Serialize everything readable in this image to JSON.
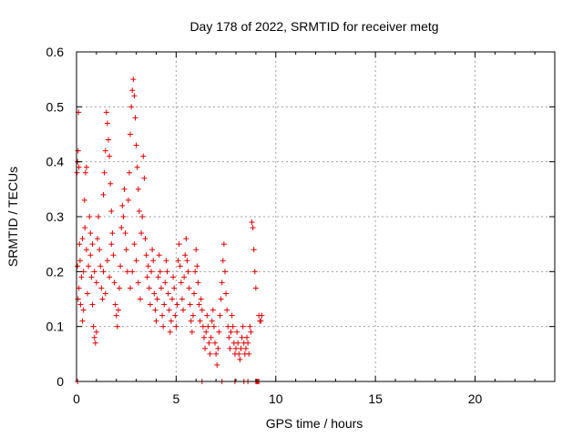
{
  "chart_data": {
    "type": "scatter",
    "title": "Day 178 of 2022, SRMTID for receiver metg",
    "xlabel": "GPS time / hours",
    "ylabel": "SRMTID / TECUs",
    "xlim": [
      0,
      24
    ],
    "ylim": [
      0,
      0.6
    ],
    "x_ticks": [
      "0",
      "5",
      "10",
      "15",
      "20"
    ],
    "y_ticks": [
      "0",
      "0.1",
      "0.2",
      "0.3",
      "0.4",
      "0.5",
      "0.6"
    ],
    "grid": true,
    "marker": "plus",
    "colors": {
      "points": "#e00000",
      "grid": "#a0a0a0",
      "frame": "#000000"
    },
    "series": [
      {
        "points": [
          [
            0.02,
            0.38
          ],
          [
            0.05,
            0.4
          ],
          [
            0.08,
            0.42
          ],
          [
            0.1,
            0.49
          ],
          [
            0.12,
            0.39
          ],
          [
            0.15,
            0.25
          ],
          [
            0.05,
            0.21
          ],
          [
            0.08,
            0.15
          ],
          [
            0.12,
            0.17
          ],
          [
            0.18,
            0.22
          ],
          [
            0.2,
            0.14
          ],
          [
            0.25,
            0.19
          ],
          [
            0.3,
            0.26
          ],
          [
            0.35,
            0.2
          ],
          [
            0.4,
            0.33
          ],
          [
            0.45,
            0.38
          ],
          [
            0.5,
            0.39
          ],
          [
            0.3,
            0.11
          ],
          [
            0.35,
            0.13
          ],
          [
            0.42,
            0.28
          ],
          [
            0.5,
            0.24
          ],
          [
            0.55,
            0.16
          ],
          [
            0.6,
            0.21
          ],
          [
            0.65,
            0.3
          ],
          [
            0.7,
            0.27
          ],
          [
            0.75,
            0.19
          ],
          [
            0.8,
            0.14
          ],
          [
            0.85,
            0.1
          ],
          [
            0.9,
            0.08
          ],
          [
            0.95,
            0.07
          ],
          [
            1.0,
            0.09
          ],
          [
            0.7,
            0.23
          ],
          [
            0.8,
            0.25
          ],
          [
            0.9,
            0.2
          ],
          [
            1.0,
            0.18
          ],
          [
            1.05,
            0.26
          ],
          [
            1.1,
            0.3
          ],
          [
            1.15,
            0.24
          ],
          [
            1.2,
            0.21
          ],
          [
            1.25,
            0.17
          ],
          [
            1.3,
            0.15
          ],
          [
            1.35,
            0.34
          ],
          [
            1.4,
            0.38
          ],
          [
            1.45,
            0.42
          ],
          [
            1.5,
            0.49
          ],
          [
            1.55,
            0.47
          ],
          [
            1.6,
            0.44
          ],
          [
            1.65,
            0.41
          ],
          [
            1.7,
            0.36
          ],
          [
            1.75,
            0.31
          ],
          [
            1.8,
            0.27
          ],
          [
            1.35,
            0.2
          ],
          [
            1.45,
            0.16
          ],
          [
            1.55,
            0.22
          ],
          [
            1.65,
            0.19
          ],
          [
            1.75,
            0.25
          ],
          [
            1.85,
            0.23
          ],
          [
            1.9,
            0.18
          ],
          [
            1.95,
            0.14
          ],
          [
            2.0,
            0.12
          ],
          [
            2.05,
            0.1
          ],
          [
            2.1,
            0.13
          ],
          [
            2.15,
            0.17
          ],
          [
            2.2,
            0.21
          ],
          [
            2.25,
            0.28
          ],
          [
            2.3,
            0.32
          ],
          [
            2.35,
            0.3
          ],
          [
            2.4,
            0.35
          ],
          [
            2.45,
            0.27
          ],
          [
            2.5,
            0.24
          ],
          [
            2.55,
            0.2
          ],
          [
            2.6,
            0.33
          ],
          [
            2.65,
            0.38
          ],
          [
            2.7,
            0.45
          ],
          [
            2.75,
            0.5
          ],
          [
            2.8,
            0.53
          ],
          [
            2.85,
            0.55
          ],
          [
            2.9,
            0.52
          ],
          [
            2.95,
            0.48
          ],
          [
            3.0,
            0.43
          ],
          [
            3.05,
            0.39
          ],
          [
            3.1,
            0.35
          ],
          [
            3.15,
            0.31
          ],
          [
            2.7,
            0.17
          ],
          [
            2.8,
            0.2
          ],
          [
            2.9,
            0.25
          ],
          [
            3.0,
            0.22
          ],
          [
            3.1,
            0.18
          ],
          [
            3.2,
            0.15
          ],
          [
            3.25,
            0.27
          ],
          [
            3.3,
            0.3
          ],
          [
            3.35,
            0.41
          ],
          [
            3.4,
            0.37
          ],
          [
            3.45,
            0.26
          ],
          [
            3.5,
            0.23
          ],
          [
            3.55,
            0.19
          ],
          [
            3.6,
            0.21
          ],
          [
            3.65,
            0.17
          ],
          [
            3.7,
            0.14
          ],
          [
            3.75,
            0.2
          ],
          [
            3.8,
            0.24
          ],
          [
            3.85,
            0.22
          ],
          [
            3.9,
            0.16
          ],
          [
            3.95,
            0.13
          ],
          [
            4.0,
            0.11
          ],
          [
            4.05,
            0.15
          ],
          [
            4.1,
            0.19
          ],
          [
            4.15,
            0.23
          ],
          [
            4.2,
            0.2
          ],
          [
            4.25,
            0.17
          ],
          [
            4.3,
            0.12
          ],
          [
            4.35,
            0.1
          ],
          [
            4.4,
            0.14
          ],
          [
            4.45,
            0.18
          ],
          [
            4.5,
            0.22
          ],
          [
            4.55,
            0.2
          ],
          [
            4.6,
            0.16
          ],
          [
            4.65,
            0.13
          ],
          [
            4.7,
            0.09
          ],
          [
            4.75,
            0.11
          ],
          [
            4.8,
            0.15
          ],
          [
            4.85,
            0.19
          ],
          [
            4.9,
            0.17
          ],
          [
            4.95,
            0.12
          ],
          [
            5.0,
            0.1
          ],
          [
            5.05,
            0.14
          ],
          [
            5.1,
            0.22
          ],
          [
            5.15,
            0.25
          ],
          [
            5.2,
            0.21
          ],
          [
            5.25,
            0.18
          ],
          [
            5.3,
            0.15
          ],
          [
            5.35,
            0.13
          ],
          [
            5.4,
            0.19
          ],
          [
            5.45,
            0.23
          ],
          [
            5.5,
            0.26
          ],
          [
            5.55,
            0.22
          ],
          [
            5.6,
            0.2
          ],
          [
            5.65,
            0.17
          ],
          [
            5.7,
            0.14
          ],
          [
            5.75,
            0.11
          ],
          [
            5.8,
            0.09
          ],
          [
            5.85,
            0.12
          ],
          [
            5.9,
            0.16
          ],
          [
            5.95,
            0.2
          ],
          [
            6.0,
            0.24
          ],
          [
            6.05,
            0.21
          ],
          [
            6.1,
            0.18
          ],
          [
            6.15,
            0.14
          ],
          [
            6.2,
            0.11
          ],
          [
            6.25,
            0.15
          ],
          [
            6.3,
            0.13
          ],
          [
            6.35,
            0.1
          ],
          [
            6.4,
            0.08
          ],
          [
            6.45,
            0.06
          ],
          [
            6.5,
            0.09
          ],
          [
            6.55,
            0.12
          ],
          [
            6.6,
            0.1
          ],
          [
            6.65,
            0.07
          ],
          [
            6.7,
            0.05
          ],
          [
            6.75,
            0.08
          ],
          [
            6.8,
            0.11
          ],
          [
            6.85,
            0.13
          ],
          [
            6.9,
            0.1
          ],
          [
            6.95,
            0.07
          ],
          [
            7.0,
            0.05
          ],
          [
            7.05,
            0.03
          ],
          [
            7.1,
            0.06
          ],
          [
            7.15,
            0.09
          ],
          [
            7.2,
            0.12
          ],
          [
            7.25,
            0.15
          ],
          [
            7.3,
            0.18
          ],
          [
            7.35,
            0.22
          ],
          [
            7.4,
            0.25
          ],
          [
            7.45,
            0.2
          ],
          [
            7.5,
            0.16
          ],
          [
            7.55,
            0.13
          ],
          [
            7.6,
            0.1
          ],
          [
            7.65,
            0.08
          ],
          [
            7.7,
            0.06
          ],
          [
            7.75,
            0.09
          ],
          [
            7.8,
            0.12
          ],
          [
            7.85,
            0.1
          ],
          [
            7.9,
            0.07
          ],
          [
            7.95,
            0.05
          ],
          [
            8.0,
            0.06
          ],
          [
            8.05,
            0.09
          ],
          [
            8.1,
            0.07
          ],
          [
            8.15,
            0.05
          ],
          [
            8.2,
            0.04
          ],
          [
            8.25,
            0.06
          ],
          [
            8.3,
            0.08
          ],
          [
            8.35,
            0.1
          ],
          [
            8.4,
            0.07
          ],
          [
            8.45,
            0.05
          ],
          [
            8.5,
            0.06
          ],
          [
            8.55,
            0.08
          ],
          [
            8.6,
            0.07
          ],
          [
            8.65,
            0.05
          ],
          [
            8.7,
            0.1
          ],
          [
            8.75,
            0.09
          ],
          [
            8.8,
            0.29
          ],
          [
            8.85,
            0.28
          ],
          [
            8.9,
            0.24
          ],
          [
            8.95,
            0.2
          ],
          [
            9.0,
            0.17
          ],
          [
            9.15,
            0.12
          ],
          [
            9.2,
            0.11
          ],
          [
            9.25,
            0.11
          ],
          [
            9.3,
            0.12
          ],
          [
            0.05,
            0.0
          ],
          [
            6.3,
            0.0
          ],
          [
            7.3,
            0.0
          ],
          [
            7.95,
            0.0
          ],
          [
            8.4,
            0.0
          ],
          [
            8.6,
            0.0
          ],
          [
            9.0,
            0.0
          ],
          [
            9.05,
            0.0
          ],
          [
            9.1,
            0.0
          ],
          [
            9.15,
            0.0
          ]
        ]
      }
    ]
  }
}
